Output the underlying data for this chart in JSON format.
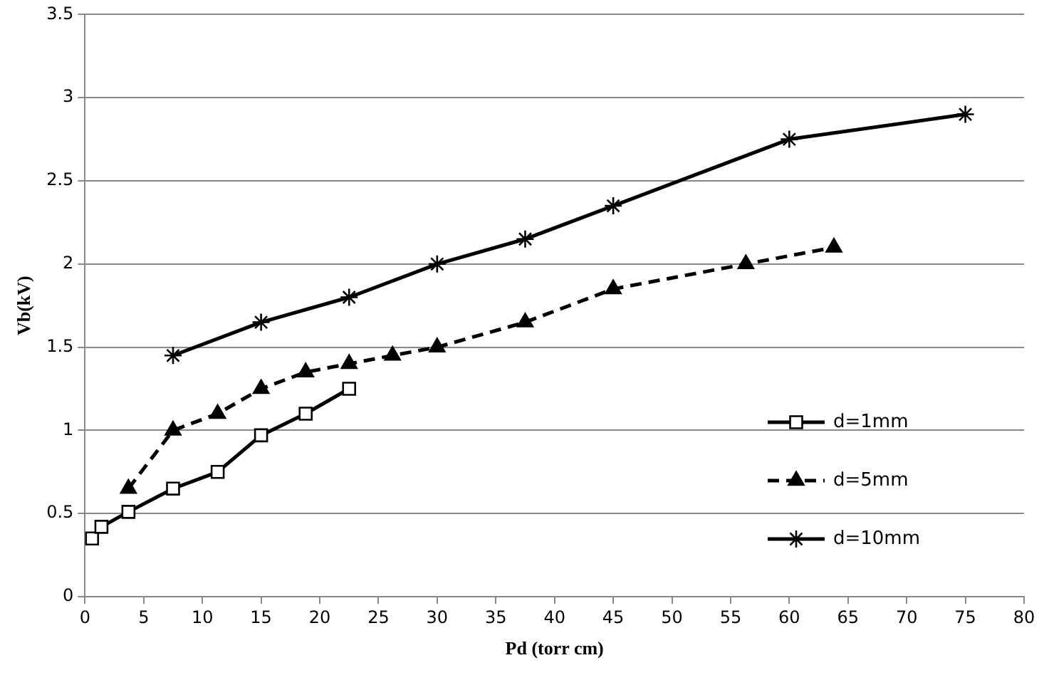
{
  "chart_data": {
    "type": "line",
    "xlabel": "Pd (torr cm)",
    "ylabel": "Vb(kV)",
    "xlim": [
      0,
      80
    ],
    "xticks": [
      0,
      5,
      10,
      15,
      20,
      25,
      30,
      35,
      40,
      45,
      50,
      55,
      60,
      65,
      70,
      75,
      80
    ],
    "ylim": [
      0,
      3.5
    ],
    "yticks": [
      0,
      0.5,
      1,
      1.5,
      2,
      2.5,
      3,
      3.5
    ],
    "grid": "y",
    "legend": "bottom right",
    "series": [
      {
        "name": "d=1mm",
        "color": "#000000",
        "marker": "square",
        "line_style": "solid",
        "x": [
          0.6,
          1.4,
          3.7,
          7.5,
          11.3,
          15,
          18.8,
          22.5
        ],
        "values": [
          0.35,
          0.42,
          0.51,
          0.65,
          0.75,
          0.97,
          1.1,
          1.25
        ]
      },
      {
        "name": "d=5mm",
        "color": "#000000",
        "marker": "triangle",
        "line_style": "dashed",
        "x": [
          3.7,
          7.5,
          11.3,
          15,
          18.8,
          22.5,
          26.2,
          30,
          37.5,
          45,
          56.3,
          63.8
        ],
        "values": [
          0.65,
          1.0,
          1.1,
          1.25,
          1.35,
          1.4,
          1.45,
          1.5,
          1.65,
          1.85,
          2.0,
          2.1
        ]
      },
      {
        "name": "d=10mm",
        "color": "#000000",
        "marker": "cross",
        "line_style": "solid",
        "x": [
          7.5,
          15,
          22.5,
          30,
          37.5,
          45,
          60,
          75
        ],
        "values": [
          1.45,
          1.65,
          1.8,
          2.0,
          2.15,
          2.35,
          2.75,
          2.9
        ]
      }
    ]
  }
}
